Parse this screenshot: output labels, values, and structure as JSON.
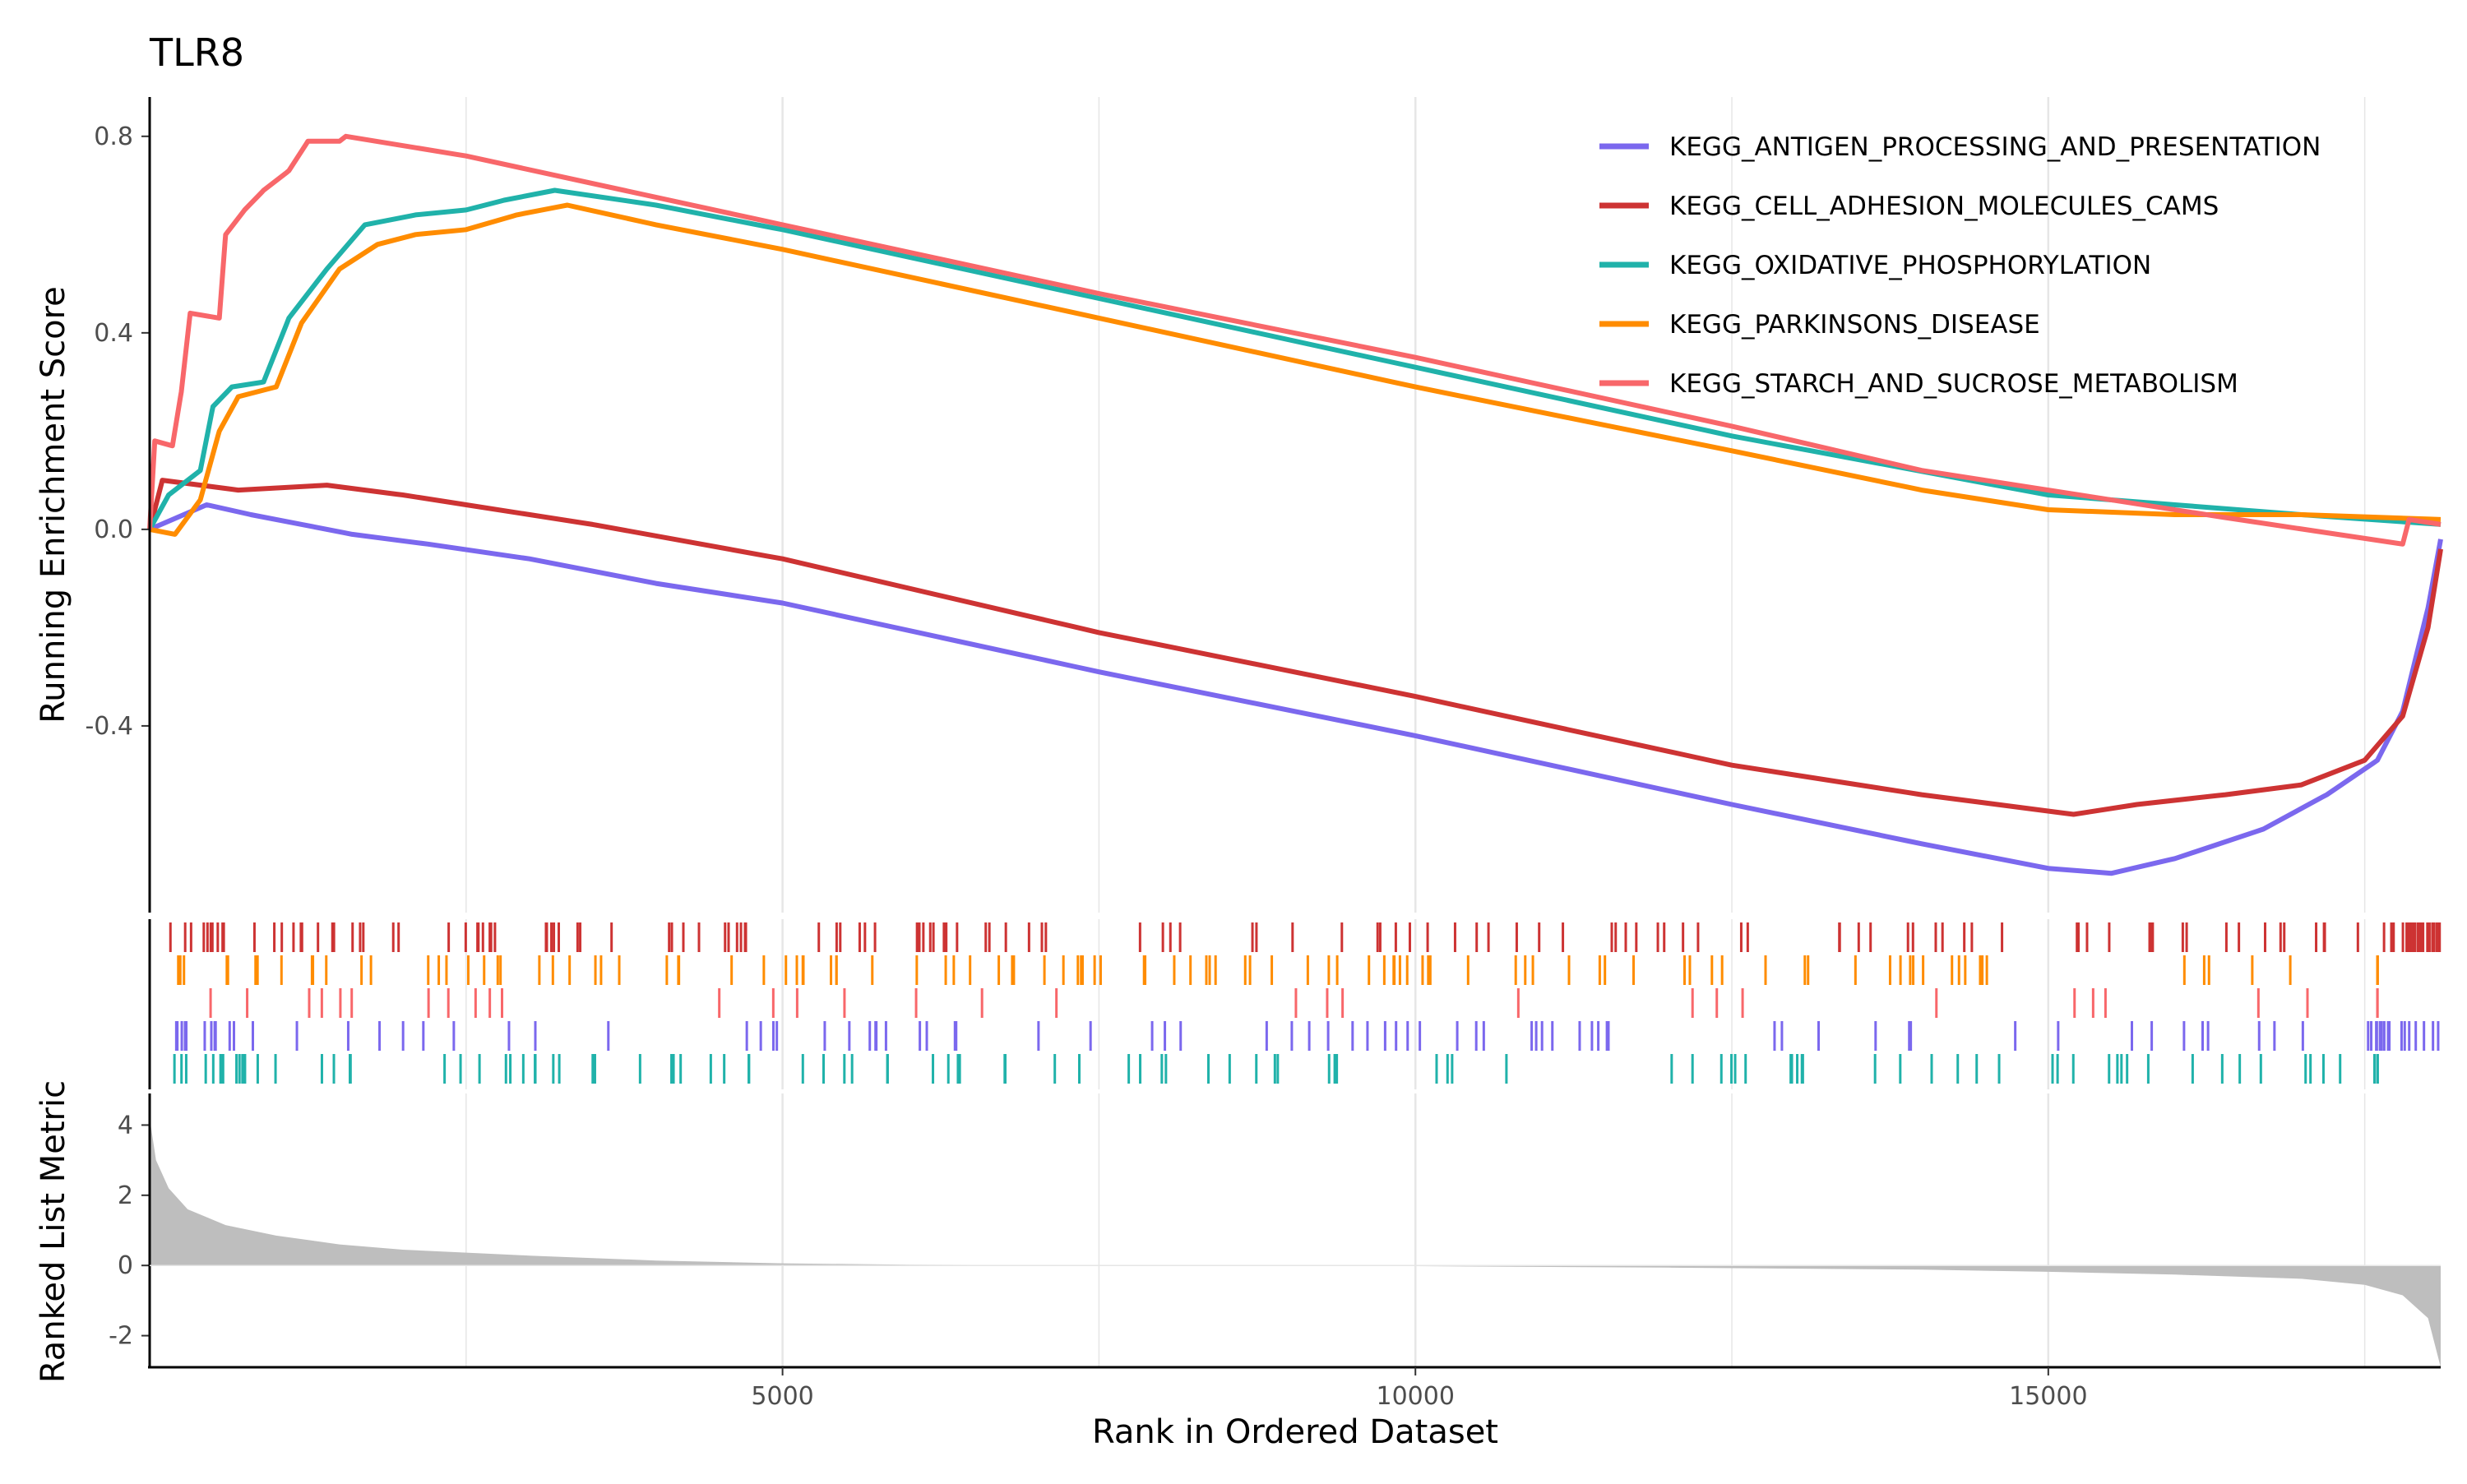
{
  "chart_data": {
    "type": "line",
    "title": "TLR8",
    "xlabel": "Rank in Ordered Dataset",
    "xlim": [
      0,
      18100
    ],
    "x_ticks": [
      5000,
      10000,
      15000
    ],
    "x_tick_labels": [
      "5000",
      "10000",
      "15000"
    ],
    "grid": true,
    "legend_position": "top-right",
    "panels": {
      "running_score": {
        "ylabel": "Running Enrichment Score",
        "ylim": [
          -0.78,
          0.88
        ],
        "y_ticks": [
          -0.4,
          0.0,
          0.4,
          0.8
        ],
        "y_tick_labels": [
          "-0.4",
          "0.0",
          "0.4",
          "0.8"
        ]
      },
      "ranked_metric": {
        "ylabel": "Ranked List Metric",
        "ylim": [
          -2.9,
          4.9
        ],
        "y_ticks": [
          -2,
          0,
          2,
          4
        ],
        "y_tick_labels": [
          "-2",
          "0",
          "2",
          "4"
        ]
      }
    },
    "series": [
      {
        "name": "KEGG_ANTIGEN_PROCESSING_AND_PRESENTATION",
        "color": "#7B68EE",
        "points": [
          [
            0,
            0
          ],
          [
            450,
            0.05
          ],
          [
            800,
            0.03
          ],
          [
            1600,
            -0.01
          ],
          [
            2200,
            -0.03
          ],
          [
            3000,
            -0.06
          ],
          [
            4000,
            -0.11
          ],
          [
            5000,
            -0.15
          ],
          [
            7500,
            -0.29
          ],
          [
            10000,
            -0.42
          ],
          [
            12500,
            -0.56
          ],
          [
            14000,
            -0.64
          ],
          [
            15000,
            -0.69
          ],
          [
            15500,
            -0.7
          ],
          [
            16000,
            -0.67
          ],
          [
            16700,
            -0.61
          ],
          [
            17200,
            -0.54
          ],
          [
            17600,
            -0.47
          ],
          [
            17800,
            -0.37
          ],
          [
            18000,
            -0.16
          ],
          [
            18100,
            -0.02
          ]
        ]
      },
      {
        "name": "KEGG_CELL_ADHESION_MOLECULES_CAMS",
        "color": "#CD3333",
        "points": [
          [
            0,
            0
          ],
          [
            100,
            0.1
          ],
          [
            700,
            0.08
          ],
          [
            1400,
            0.09
          ],
          [
            2000,
            0.07
          ],
          [
            2500,
            0.05
          ],
          [
            3500,
            0.01
          ],
          [
            5000,
            -0.06
          ],
          [
            7500,
            -0.21
          ],
          [
            10000,
            -0.34
          ],
          [
            12500,
            -0.48
          ],
          [
            14000,
            -0.54
          ],
          [
            15200,
            -0.58
          ],
          [
            15700,
            -0.56
          ],
          [
            16400,
            -0.54
          ],
          [
            17000,
            -0.52
          ],
          [
            17500,
            -0.47
          ],
          [
            17800,
            -0.38
          ],
          [
            18000,
            -0.2
          ],
          [
            18100,
            -0.04
          ]
        ]
      },
      {
        "name": "KEGG_OXIDATIVE_PHOSPHORYLATION",
        "color": "#20B2AA",
        "points": [
          [
            0,
            0
          ],
          [
            150,
            0.07
          ],
          [
            400,
            0.12
          ],
          [
            500,
            0.25
          ],
          [
            650,
            0.29
          ],
          [
            900,
            0.3
          ],
          [
            1100,
            0.43
          ],
          [
            1400,
            0.53
          ],
          [
            1700,
            0.62
          ],
          [
            2100,
            0.64
          ],
          [
            2500,
            0.65
          ],
          [
            2800,
            0.67
          ],
          [
            3200,
            0.69
          ],
          [
            4000,
            0.66
          ],
          [
            5000,
            0.61
          ],
          [
            7500,
            0.47
          ],
          [
            10000,
            0.33
          ],
          [
            12500,
            0.19
          ],
          [
            15000,
            0.07
          ],
          [
            16000,
            0.05
          ],
          [
            17000,
            0.03
          ],
          [
            18100,
            0.01
          ]
        ]
      },
      {
        "name": "KEGG_PARKINSONS_DISEASE",
        "color": "#FF8C00",
        "points": [
          [
            0,
            0
          ],
          [
            200,
            -0.01
          ],
          [
            400,
            0.06
          ],
          [
            550,
            0.2
          ],
          [
            700,
            0.27
          ],
          [
            1000,
            0.29
          ],
          [
            1200,
            0.42
          ],
          [
            1500,
            0.53
          ],
          [
            1800,
            0.58
          ],
          [
            2100,
            0.6
          ],
          [
            2500,
            0.61
          ],
          [
            2900,
            0.64
          ],
          [
            3300,
            0.66
          ],
          [
            4000,
            0.62
          ],
          [
            5000,
            0.57
          ],
          [
            7500,
            0.43
          ],
          [
            10000,
            0.29
          ],
          [
            12500,
            0.16
          ],
          [
            14000,
            0.08
          ],
          [
            15000,
            0.04
          ],
          [
            16000,
            0.03
          ],
          [
            17000,
            0.03
          ],
          [
            18100,
            0.02
          ]
        ]
      },
      {
        "name": "KEGG_STARCH_AND_SUCROSE_METABOLISM",
        "color": "#F8676A",
        "points": [
          [
            0,
            0
          ],
          [
            40,
            0.18
          ],
          [
            180,
            0.17
          ],
          [
            250,
            0.28
          ],
          [
            320,
            0.44
          ],
          [
            550,
            0.43
          ],
          [
            600,
            0.6
          ],
          [
            750,
            0.65
          ],
          [
            900,
            0.69
          ],
          [
            1100,
            0.73
          ],
          [
            1250,
            0.79
          ],
          [
            1500,
            0.79
          ],
          [
            1550,
            0.8
          ],
          [
            2500,
            0.76
          ],
          [
            5000,
            0.62
          ],
          [
            7500,
            0.48
          ],
          [
            10000,
            0.35
          ],
          [
            12500,
            0.21
          ],
          [
            14000,
            0.12
          ],
          [
            15000,
            0.08
          ],
          [
            16500,
            0.02
          ],
          [
            17800,
            -0.03
          ],
          [
            17850,
            0.02
          ],
          [
            18100,
            0.01
          ]
        ]
      }
    ],
    "gene_hit_rows": [
      {
        "series": "KEGG_CELL_ADHESION_MOLECULES_CAMS",
        "color": "#CD3333",
        "n_hits": 160,
        "start": 150,
        "end": 18100,
        "dense_start": 17700
      },
      {
        "series": "KEGG_PARKINSONS_DISEASE",
        "color": "#FF8C00",
        "n_hits": 130,
        "start": 150,
        "end": 17600,
        "dense_start": 17600
      },
      {
        "series": "KEGG_STARCH_AND_SUCROSE_METABOLISM",
        "color": "#F8676A",
        "n_hits": 38,
        "start": 50,
        "end": 17600,
        "dense_start": 17600
      },
      {
        "series": "KEGG_ANTIGEN_PROCESSING_AND_PRESENTATION",
        "color": "#7B68EE",
        "n_hits": 95,
        "start": 200,
        "end": 18100,
        "dense_start": 17500
      },
      {
        "series": "KEGG_OXIDATIVE_PHOSPHORYLATION",
        "color": "#20B2AA",
        "n_hits": 125,
        "start": 100,
        "end": 17600,
        "dense_start": 17600
      }
    ],
    "ranked_metric": {
      "fill_color": "#BEBEBE",
      "points": [
        [
          0,
          4.2
        ],
        [
          50,
          3.0
        ],
        [
          150,
          2.2
        ],
        [
          300,
          1.6
        ],
        [
          600,
          1.15
        ],
        [
          1000,
          0.85
        ],
        [
          1500,
          0.6
        ],
        [
          2000,
          0.45
        ],
        [
          3000,
          0.28
        ],
        [
          4000,
          0.14
        ],
        [
          5000,
          0.06
        ],
        [
          6000,
          0.02
        ],
        [
          7600,
          0.005
        ],
        [
          8500,
          -0.005
        ],
        [
          10000,
          -0.02
        ],
        [
          12000,
          -0.06
        ],
        [
          14000,
          -0.12
        ],
        [
          15000,
          -0.18
        ],
        [
          16000,
          -0.26
        ],
        [
          17000,
          -0.38
        ],
        [
          17500,
          -0.55
        ],
        [
          17800,
          -0.85
        ],
        [
          18000,
          -1.5
        ],
        [
          18100,
          -2.9
        ]
      ]
    }
  }
}
